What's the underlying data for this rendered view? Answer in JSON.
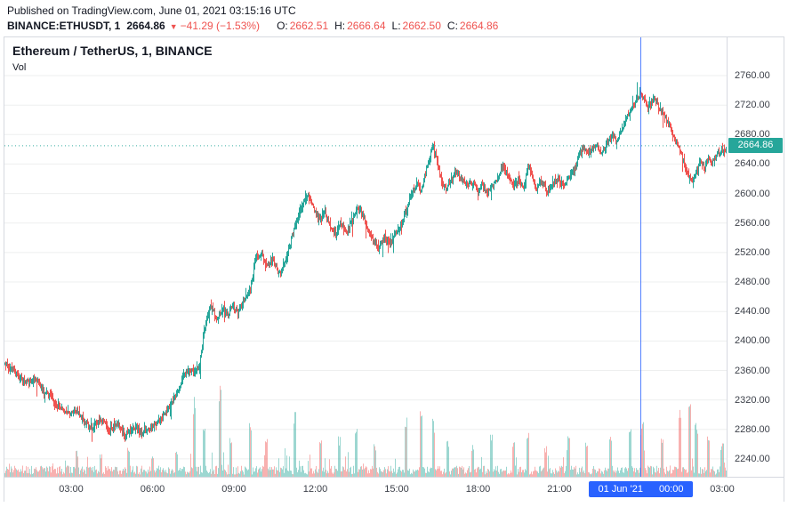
{
  "header": {
    "published": "Published on TradingView.com, June 01, 2021 03:15:16 UTC",
    "symbol": "BINANCE:ETHUSDT, 1",
    "last": "2664.86",
    "change_icon": "▼",
    "change": "−41.29 (−1.53%)",
    "ohlc": [
      {
        "label": "O:",
        "value": "2662.51"
      },
      {
        "label": "H:",
        "value": "2666.64"
      },
      {
        "label": "L:",
        "value": "2662.50"
      },
      {
        "label": "C:",
        "value": "2664.86"
      }
    ]
  },
  "chart": {
    "title": "Ethereum / TetherUS, 1, BINANCE",
    "indicator": "Vol",
    "price_label": "2664.86",
    "session_date": "01 Jun '21",
    "session_time": "00:00"
  },
  "colors": {
    "up": "#26a69a",
    "down": "#ef5350",
    "volume_up": "rgba(38,166,154,0.45)",
    "volume_down": "rgba(239,83,80,0.45)",
    "grid": "rgba(42,46,57,0.08)",
    "session_line": "#2962ff",
    "price_line": "#26a69a",
    "badge_bg": "#26a69a",
    "pill_bg": "#2962ff",
    "red_text": "#ef5350"
  },
  "chart_data": {
    "type": "candlestick",
    "symbol": "BINANCE:ETHUSDT",
    "interval": "1",
    "exchange": "BINANCE",
    "ohlc_summary": {
      "open": 2662.51,
      "high": 2666.64,
      "low": 2662.5,
      "close": 2664.86,
      "change": -41.29,
      "change_pct": -1.53
    },
    "price_line": 2664.86,
    "session_break_t": 23,
    "t_start": -0.459,
    "t_end": 26.25,
    "y_ticks": [
      2760,
      2720,
      2680,
      2640,
      2600,
      2560,
      2520,
      2480,
      2440,
      2400,
      2360,
      2320,
      2280,
      2240
    ],
    "x_ticks": [
      {
        "t": 2,
        "label": "03:00"
      },
      {
        "t": 5,
        "label": "06:00"
      },
      {
        "t": 8,
        "label": "09:00"
      },
      {
        "t": 11,
        "label": "12:00"
      },
      {
        "t": 14,
        "label": "15:00"
      },
      {
        "t": 17,
        "label": "18:00"
      },
      {
        "t": 20,
        "label": "21:00"
      },
      {
        "t": 26,
        "label": "03:00"
      }
    ],
    "path": [
      [
        -0.5,
        2370
      ],
      [
        0.0,
        2354
      ],
      [
        0.4,
        2344
      ],
      [
        0.7,
        2350
      ],
      [
        1.0,
        2332
      ],
      [
        1.3,
        2320
      ],
      [
        1.6,
        2310
      ],
      [
        1.9,
        2300
      ],
      [
        2.2,
        2306
      ],
      [
        2.5,
        2290
      ],
      [
        2.8,
        2282
      ],
      [
        3.1,
        2294
      ],
      [
        3.4,
        2279
      ],
      [
        3.7,
        2286
      ],
      [
        4.0,
        2272
      ],
      [
        4.3,
        2283
      ],
      [
        4.6,
        2275
      ],
      [
        4.9,
        2280
      ],
      [
        5.2,
        2290
      ],
      [
        5.5,
        2304
      ],
      [
        5.8,
        2322
      ],
      [
        6.1,
        2348
      ],
      [
        6.35,
        2362
      ],
      [
        6.55,
        2356
      ],
      [
        6.75,
        2370
      ],
      [
        6.9,
        2412
      ],
      [
        7.05,
        2438
      ],
      [
        7.2,
        2448
      ],
      [
        7.35,
        2430
      ],
      [
        7.55,
        2442
      ],
      [
        7.75,
        2434
      ],
      [
        7.95,
        2448
      ],
      [
        8.15,
        2440
      ],
      [
        8.35,
        2454
      ],
      [
        8.6,
        2470
      ],
      [
        8.8,
        2512
      ],
      [
        9.0,
        2520
      ],
      [
        9.2,
        2500
      ],
      [
        9.45,
        2510
      ],
      [
        9.7,
        2490
      ],
      [
        9.95,
        2514
      ],
      [
        10.15,
        2542
      ],
      [
        10.4,
        2570
      ],
      [
        10.6,
        2590
      ],
      [
        10.75,
        2596
      ],
      [
        10.95,
        2578
      ],
      [
        11.15,
        2564
      ],
      [
        11.35,
        2574
      ],
      [
        11.55,
        2554
      ],
      [
        11.75,
        2544
      ],
      [
        11.95,
        2558
      ],
      [
        12.15,
        2546
      ],
      [
        12.35,
        2564
      ],
      [
        12.55,
        2580
      ],
      [
        12.75,
        2570
      ],
      [
        12.95,
        2550
      ],
      [
        13.15,
        2534
      ],
      [
        13.35,
        2526
      ],
      [
        13.55,
        2540
      ],
      [
        13.75,
        2532
      ],
      [
        13.95,
        2546
      ],
      [
        14.15,
        2556
      ],
      [
        14.35,
        2576
      ],
      [
        14.55,
        2600
      ],
      [
        14.75,
        2614
      ],
      [
        14.9,
        2602
      ],
      [
        15.05,
        2626
      ],
      [
        15.2,
        2648
      ],
      [
        15.35,
        2664
      ],
      [
        15.5,
        2642
      ],
      [
        15.65,
        2620
      ],
      [
        15.8,
        2606
      ],
      [
        15.95,
        2616
      ],
      [
        16.15,
        2630
      ],
      [
        16.35,
        2622
      ],
      [
        16.55,
        2610
      ],
      [
        16.75,
        2617
      ],
      [
        16.95,
        2606
      ],
      [
        17.15,
        2613
      ],
      [
        17.35,
        2600
      ],
      [
        17.55,
        2611
      ],
      [
        17.75,
        2624
      ],
      [
        17.95,
        2637
      ],
      [
        18.1,
        2622
      ],
      [
        18.3,
        2610
      ],
      [
        18.5,
        2618
      ],
      [
        18.7,
        2606
      ],
      [
        18.85,
        2641
      ],
      [
        19.0,
        2622
      ],
      [
        19.15,
        2605
      ],
      [
        19.35,
        2616
      ],
      [
        19.55,
        2603
      ],
      [
        19.75,
        2613
      ],
      [
        19.95,
        2620
      ],
      [
        20.15,
        2610
      ],
      [
        20.35,
        2622
      ],
      [
        20.55,
        2634
      ],
      [
        20.75,
        2654
      ],
      [
        20.9,
        2664
      ],
      [
        21.05,
        2652
      ],
      [
        21.2,
        2660
      ],
      [
        21.35,
        2668
      ],
      [
        21.5,
        2655
      ],
      [
        21.65,
        2662
      ],
      [
        21.8,
        2672
      ],
      [
        21.95,
        2680
      ],
      [
        22.1,
        2672
      ],
      [
        22.25,
        2684
      ],
      [
        22.4,
        2696
      ],
      [
        22.55,
        2706
      ],
      [
        22.7,
        2718
      ],
      [
        22.85,
        2728
      ],
      [
        23.0,
        2736
      ],
      [
        23.1,
        2730
      ],
      [
        23.25,
        2718
      ],
      [
        23.4,
        2724
      ],
      [
        23.55,
        2728
      ],
      [
        23.7,
        2714
      ],
      [
        23.85,
        2706
      ],
      [
        24.0,
        2696
      ],
      [
        24.15,
        2682
      ],
      [
        24.3,
        2672
      ],
      [
        24.45,
        2660
      ],
      [
        24.6,
        2640
      ],
      [
        24.75,
        2624
      ],
      [
        24.9,
        2614
      ],
      [
        25.05,
        2628
      ],
      [
        25.2,
        2642
      ],
      [
        25.35,
        2634
      ],
      [
        25.5,
        2648
      ],
      [
        25.65,
        2642
      ],
      [
        25.8,
        2652
      ],
      [
        25.95,
        2656
      ],
      [
        26.1,
        2660
      ],
      [
        26.25,
        2664.86
      ]
    ],
    "volume_spikes": [
      [
        2.2,
        26
      ],
      [
        3.1,
        22
      ],
      [
        4.1,
        30
      ],
      [
        5.0,
        20
      ],
      [
        5.9,
        28
      ],
      [
        6.55,
        80
      ],
      [
        6.9,
        52
      ],
      [
        7.5,
        90
      ],
      [
        7.9,
        44
      ],
      [
        8.6,
        58
      ],
      [
        9.2,
        38
      ],
      [
        10.25,
        66
      ],
      [
        11.2,
        36
      ],
      [
        11.9,
        40
      ],
      [
        12.5,
        48
      ],
      [
        13.2,
        34
      ],
      [
        14.35,
        60
      ],
      [
        14.9,
        68
      ],
      [
        15.35,
        58
      ],
      [
        15.9,
        38
      ],
      [
        16.8,
        33
      ],
      [
        17.5,
        42
      ],
      [
        18.3,
        36
      ],
      [
        18.85,
        46
      ],
      [
        19.5,
        30
      ],
      [
        20.35,
        40
      ],
      [
        21.0,
        36
      ],
      [
        21.9,
        44
      ],
      [
        22.6,
        48
      ],
      [
        23.05,
        54
      ],
      [
        23.8,
        38
      ],
      [
        24.45,
        66
      ],
      [
        24.8,
        85
      ],
      [
        25.05,
        55
      ],
      [
        25.5,
        44
      ],
      [
        26.0,
        34
      ]
    ]
  }
}
